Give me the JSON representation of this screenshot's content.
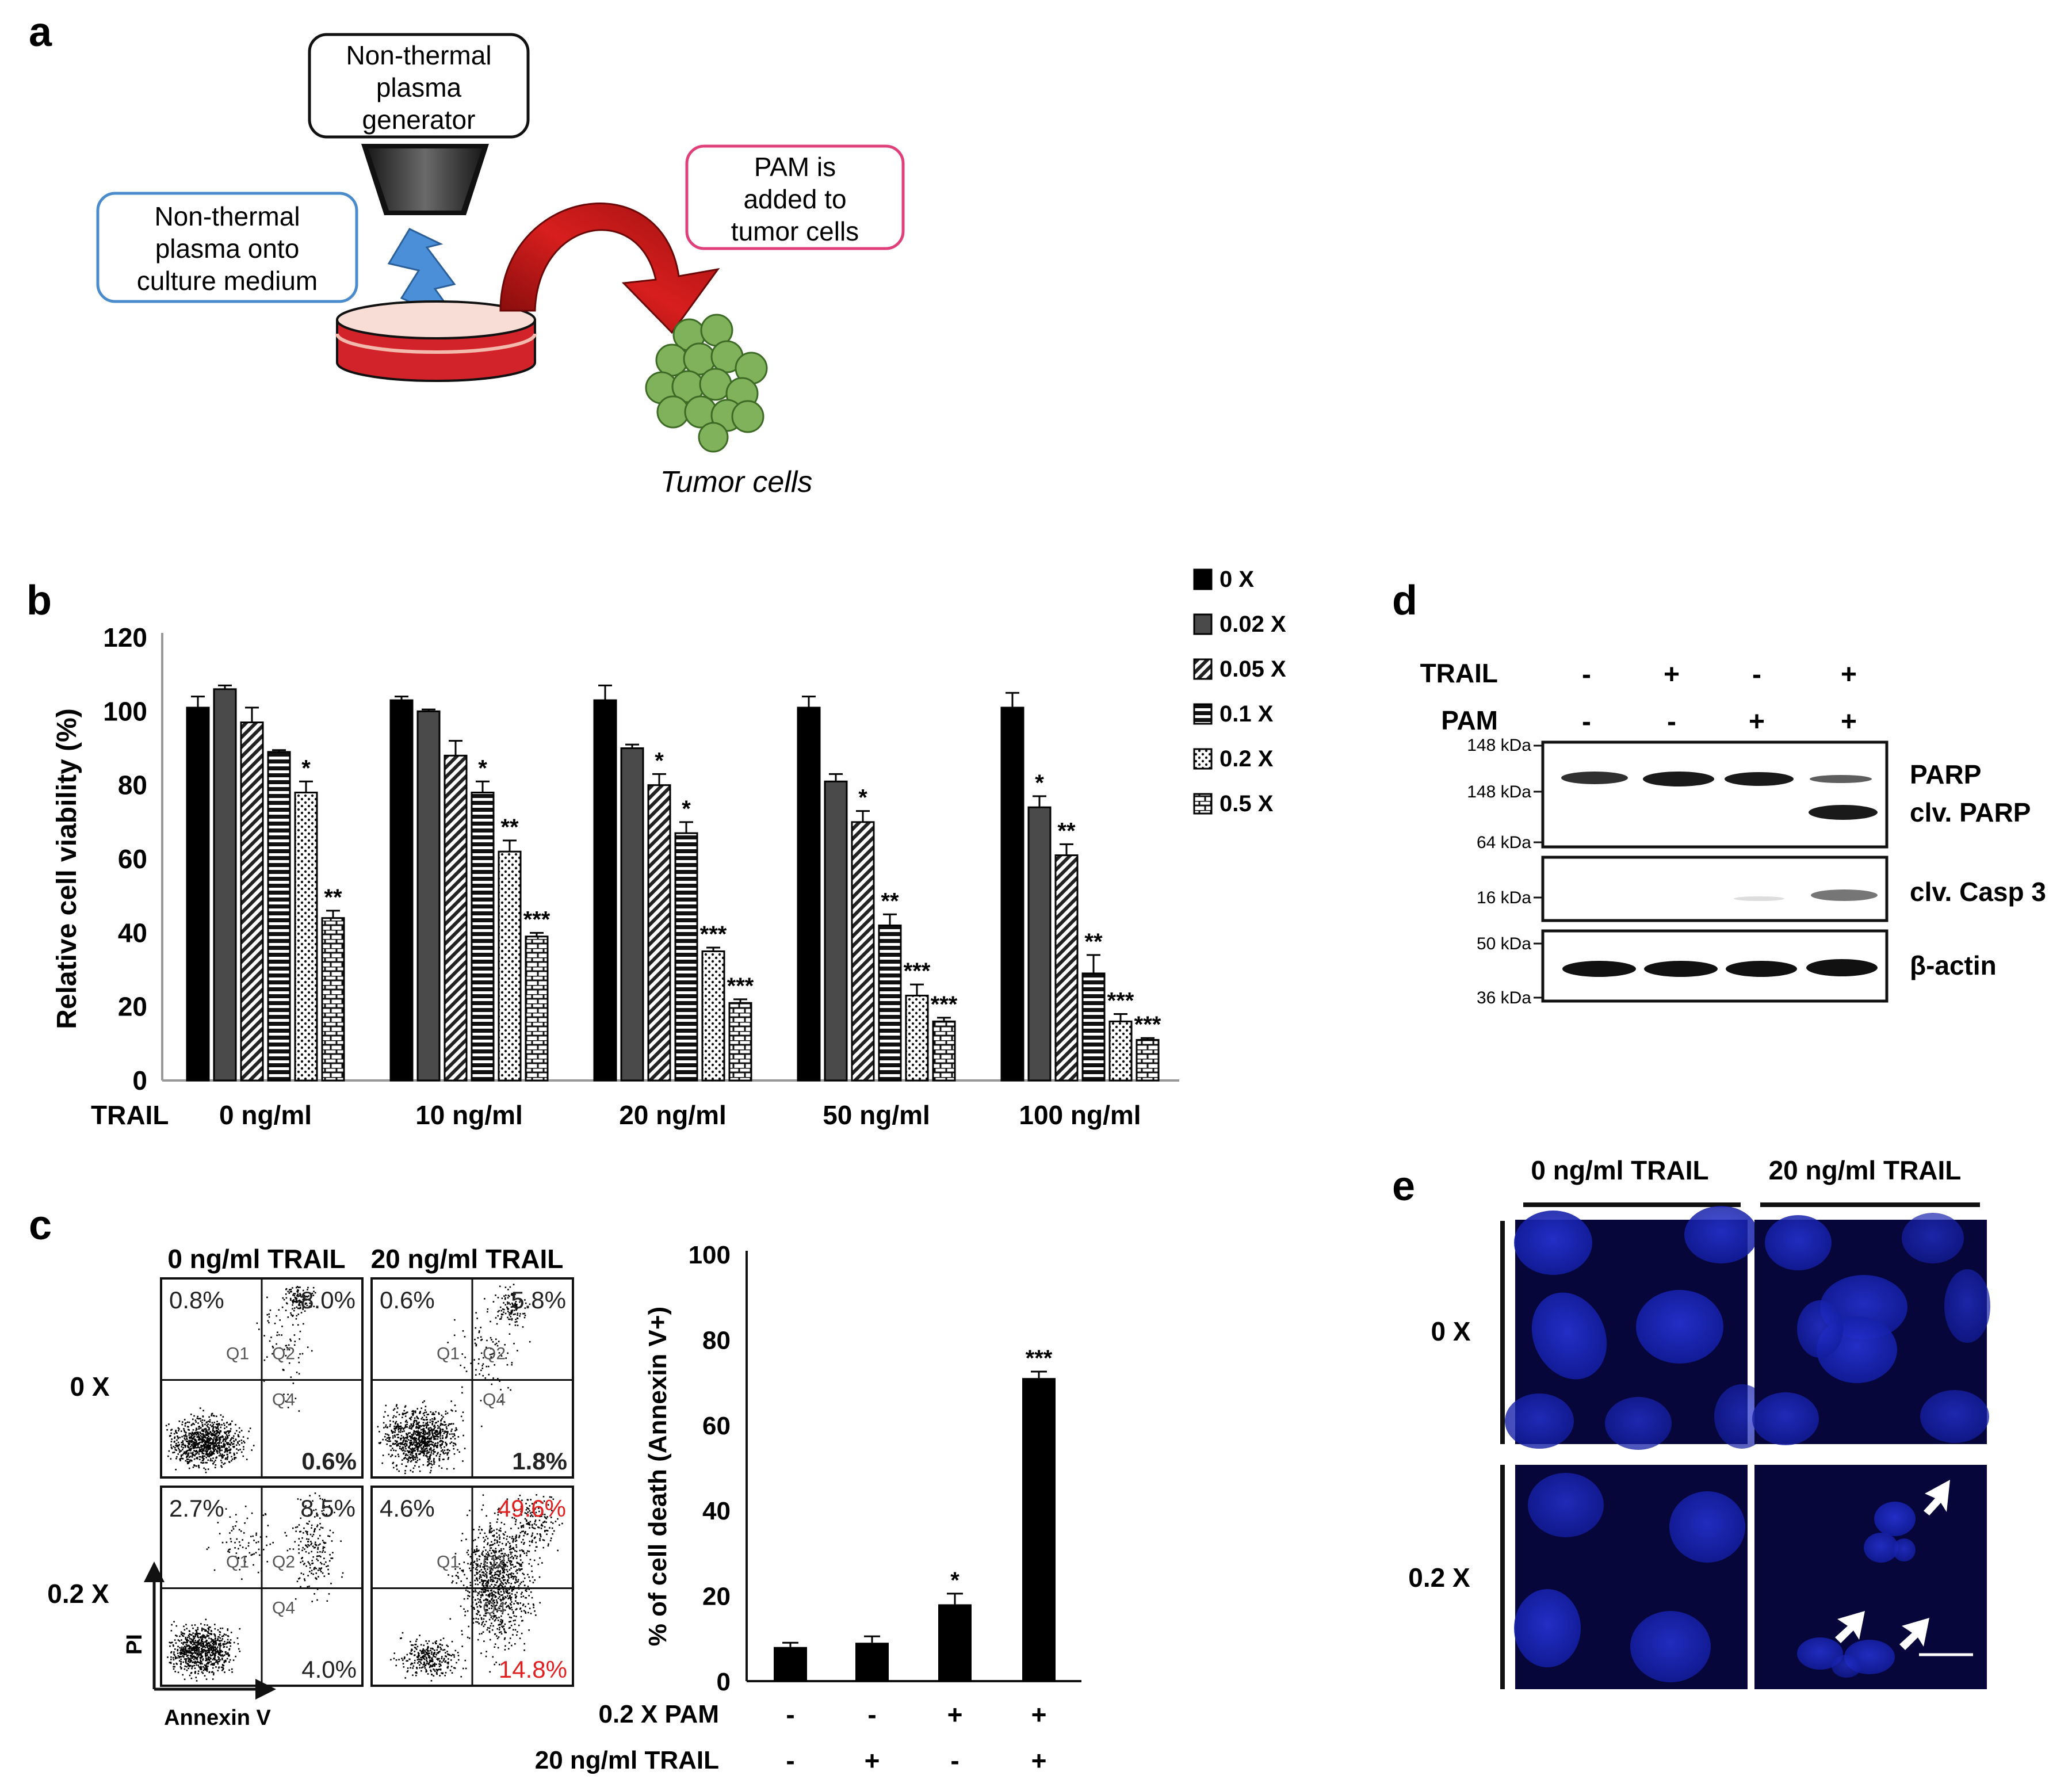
{
  "panel_a": {
    "label": "a",
    "generator_text": [
      "Non-thermal",
      "plasma",
      "generator"
    ],
    "onto_medium_text": [
      "Non-thermal",
      "plasma onto",
      "culture medium"
    ],
    "pam_text": [
      "PAM is",
      "added to",
      "tumor cells"
    ],
    "tumor_caption": "Tumor cells",
    "colors": {
      "blue_box": "#4a8ccb",
      "pink_box": "#e0407a",
      "dish": "#d2232a",
      "arrow": "#c41a1a",
      "bolt": "#4b8fd8",
      "cells": "#7fb25a"
    }
  },
  "panel_b": {
    "label": "b",
    "chart_data": {
      "type": "bar",
      "title": "",
      "ylabel": "Relative cell viability (%)",
      "xlabel": "TRAIL",
      "ylim": [
        0,
        120
      ],
      "yticks": [
        "0",
        "20",
        "40",
        "60",
        "80",
        "100",
        "120"
      ],
      "categories": [
        "0 ng/ml",
        "10 ng/ml",
        "20 ng/ml",
        "50 ng/ml",
        "100 ng/ml"
      ],
      "series": [
        {
          "name": "0 X",
          "values": [
            101,
            103,
            103,
            101,
            101
          ],
          "errors": [
            3,
            1,
            4,
            3,
            4
          ],
          "stars": [
            "",
            "",
            "",
            "",
            ""
          ]
        },
        {
          "name": "0.02 X",
          "values": [
            106,
            100,
            90,
            81,
            74
          ],
          "errors": [
            1,
            0.5,
            1,
            2,
            3
          ],
          "stars": [
            "",
            "",
            "",
            "",
            "*"
          ]
        },
        {
          "name": "0.05 X",
          "values": [
            97,
            88,
            80,
            70,
            61
          ],
          "errors": [
            4,
            4,
            3,
            3,
            3
          ],
          "stars": [
            "",
            "",
            "*",
            "*",
            "**"
          ]
        },
        {
          "name": "0.1 X",
          "values": [
            89,
            78,
            67,
            42,
            29
          ],
          "errors": [
            0.5,
            3,
            3,
            3,
            5
          ],
          "stars": [
            "",
            "*",
            "*",
            "**",
            "**"
          ]
        },
        {
          "name": "0.2 X",
          "values": [
            78,
            62,
            35,
            23,
            16
          ],
          "errors": [
            3,
            3,
            1,
            3,
            2
          ],
          "stars": [
            "*",
            "**",
            "***",
            "***",
            "***"
          ]
        },
        {
          "name": "0.5 X",
          "values": [
            44,
            39,
            21,
            16,
            11
          ],
          "errors": [
            2,
            1,
            1,
            1,
            0.5
          ],
          "stars": [
            "**",
            "***",
            "***",
            "***",
            "***"
          ]
        }
      ]
    }
  },
  "panel_c": {
    "label": "c",
    "col_headers": [
      "0 ng/ml TRAIL",
      "20 ng/ml TRAIL"
    ],
    "row_labels": [
      "0 X",
      "0.2 X"
    ],
    "quadrant_names": [
      "Q1",
      "Q2",
      "Q4"
    ],
    "plots": [
      {
        "q1": "0.8%",
        "q2": "8.0%",
        "q4": "0.6%",
        "q4_bold": true,
        "red": false
      },
      {
        "q1": "0.6%",
        "q2": "5.8%",
        "q4": "1.8%",
        "q4_bold": true,
        "red": false
      },
      {
        "q1": "2.7%",
        "q2": "8.5%",
        "q4": "4.0%",
        "q4_bold": false,
        "red": false
      },
      {
        "q1": "4.6%",
        "q2": "49.6%",
        "q4": "14.8%",
        "q4_bold": false,
        "red": true
      }
    ],
    "x_axis_label": "Annexin V",
    "y_axis_label": "PI",
    "red_color": "#e02020",
    "chart_data": {
      "type": "bar",
      "ylabel": "% of cell death (Annexin V+)",
      "ylim": [
        0,
        100
      ],
      "yticks": [
        "0",
        "20",
        "40",
        "60",
        "80",
        "100"
      ],
      "values": [
        8,
        9,
        18,
        71
      ],
      "errors": [
        1,
        1.5,
        2.5,
        1.5
      ],
      "stars": [
        "",
        "",
        "*",
        "***"
      ],
      "row_labels": [
        "0.2 X PAM",
        "20 ng/ml TRAIL"
      ],
      "pam_signs": [
        "-",
        "-",
        "+",
        "+"
      ],
      "trail_signs": [
        "-",
        "+",
        "-",
        "+"
      ]
    }
  },
  "panel_d": {
    "label": "d",
    "row_labels": [
      "TRAIL",
      "PAM"
    ],
    "trail_signs": [
      "-",
      "+",
      "-",
      "+"
    ],
    "pam_signs": [
      "-",
      "-",
      "+",
      "+"
    ],
    "markers": [
      "148 kDa",
      "148 kDa",
      "64 kDa",
      "16 kDa",
      "50 kDa",
      "36 kDa"
    ],
    "band_labels": [
      "PARP",
      "clv. PARP",
      "clv. Casp 3",
      "β-actin"
    ]
  },
  "panel_e": {
    "label": "e",
    "col_headers": [
      "0 ng/ml TRAIL",
      "20 ng/ml TRAIL"
    ],
    "row_labels": [
      "0 X",
      "0.2 X"
    ],
    "colors": {
      "bg": "#06063a",
      "nucleus": "#1a26c8"
    }
  }
}
